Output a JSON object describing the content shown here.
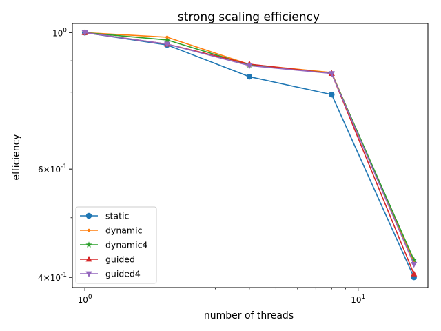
{
  "chart_data": {
    "type": "line",
    "title": "strong scaling efficiency",
    "xlabel": "number of threads",
    "ylabel": "efficiency",
    "xscale": "log",
    "yscale": "log",
    "xlim": [
      0.9,
      18
    ],
    "ylim": [
      0.385,
      1.035
    ],
    "x_ticks": [
      {
        "value": 1,
        "label": "10^0"
      },
      {
        "value": 10,
        "label": "10^1"
      }
    ],
    "y_ticks": [
      {
        "value": 1.0,
        "label": "10^0"
      },
      {
        "value": 0.6,
        "label": "6×10^-1"
      },
      {
        "value": 0.4,
        "label": "4×10^-1"
      }
    ],
    "x": [
      1,
      2,
      4,
      8,
      16
    ],
    "series": [
      {
        "name": "static",
        "color": "#1f77b4",
        "marker": "circle",
        "values": [
          1.0,
          0.955,
          0.848,
          0.793,
          0.4
        ]
      },
      {
        "name": "dynamic",
        "color": "#ff7f0e",
        "marker": "point",
        "values": [
          1.0,
          0.983,
          0.888,
          0.861,
          0.423
        ]
      },
      {
        "name": "dynamic4",
        "color": "#2ca02c",
        "marker": "star",
        "values": [
          1.0,
          0.973,
          0.886,
          0.859,
          0.427
        ]
      },
      {
        "name": "guided",
        "color": "#d62728",
        "marker": "triangle-up",
        "values": [
          1.0,
          0.958,
          0.889,
          0.858,
          0.405
        ]
      },
      {
        "name": "guided4",
        "color": "#9467bd",
        "marker": "triangle-down",
        "values": [
          1.0,
          0.958,
          0.884,
          0.858,
          0.42
        ]
      }
    ],
    "grid": false,
    "legend_position": "lower-left"
  }
}
